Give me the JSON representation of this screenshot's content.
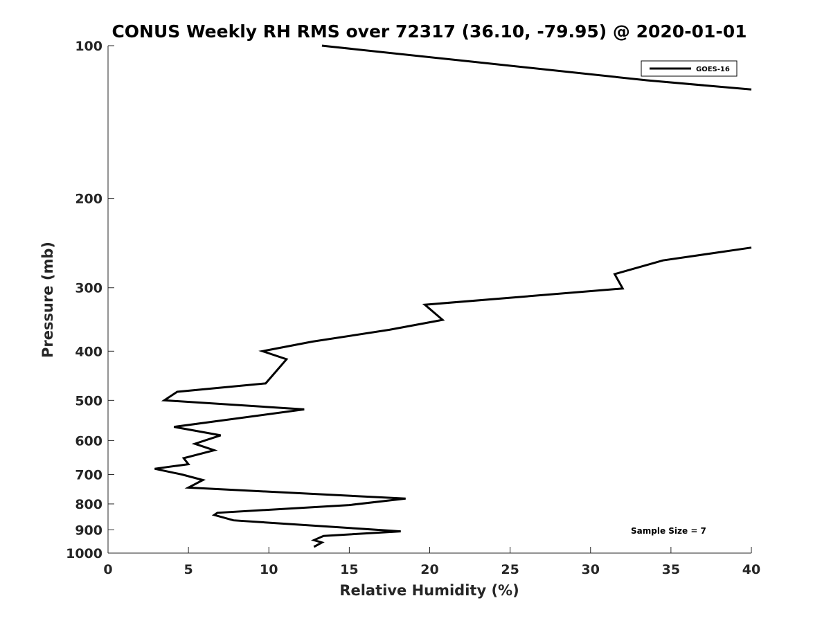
{
  "chart_data": {
    "type": "line",
    "title": "CONUS Weekly RH RMS over 72317 (36.10, -79.95) @ 2020-01-01",
    "xlabel": "Relative Humidity (%)",
    "ylabel": "Pressure (mb)",
    "xlim": [
      0,
      40
    ],
    "ylim": [
      100,
      1000
    ],
    "yscale": "log",
    "yreversed": true,
    "xticks": [
      "0",
      "5",
      "10",
      "15",
      "20",
      "25",
      "30",
      "35",
      "40"
    ],
    "yticks": [
      "100",
      "200",
      "300",
      "400",
      "500",
      "600",
      "700",
      "800",
      "900",
      "1000"
    ],
    "grid": false,
    "legend_position": "top-right",
    "annotation": "Sample Size = 7",
    "line_color": "#000000",
    "series": [
      {
        "name": "GOES-16",
        "segments": [
          [
            [
              13.3,
              100
            ],
            [
              22.0,
              107
            ],
            [
              33.5,
              117
            ],
            [
              40.0,
              122
            ]
          ],
          [
            [
              40.0,
              250
            ],
            [
              34.5,
              265
            ],
            [
              31.5,
              282
            ],
            [
              32.0,
              301
            ],
            [
              19.7,
              324
            ],
            [
              20.8,
              347
            ],
            [
              17.5,
              363
            ],
            [
              12.7,
              383
            ],
            [
              9.6,
              400
            ],
            [
              11.1,
              415
            ],
            [
              9.8,
              463
            ],
            [
              4.3,
              481
            ],
            [
              3.5,
              500
            ],
            [
              12.2,
              521
            ],
            [
              4.1,
              564
            ],
            [
              7.0,
              586
            ],
            [
              5.4,
              609
            ],
            [
              6.6,
              627
            ],
            [
              4.7,
              650
            ],
            [
              5.0,
              668
            ],
            [
              2.9,
              682
            ],
            [
              4.6,
              700
            ],
            [
              5.9,
              718
            ],
            [
              5.0,
              743
            ],
            [
              18.5,
              781
            ],
            [
              15.0,
              804
            ],
            [
              6.8,
              833
            ],
            [
              6.6,
              841
            ],
            [
              7.8,
              862
            ],
            [
              18.2,
              906
            ],
            [
              13.4,
              925
            ],
            [
              12.8,
              943
            ],
            [
              13.3,
              953
            ],
            [
              12.8,
              972
            ]
          ]
        ]
      }
    ]
  }
}
